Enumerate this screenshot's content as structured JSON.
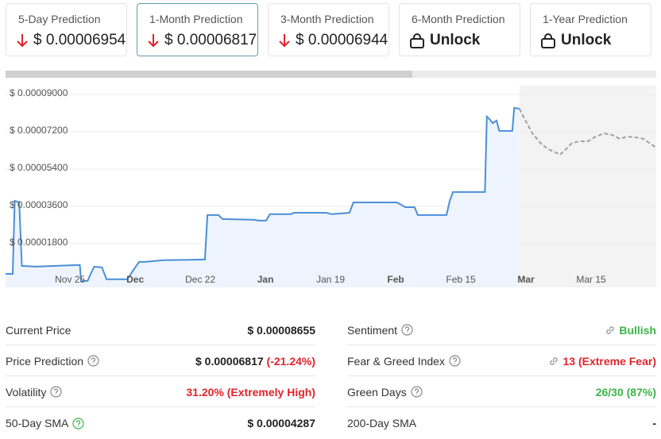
{
  "cards": [
    {
      "title": "5-Day Prediction",
      "value": "$ 0.00006954",
      "locked": false
    },
    {
      "title": "1-Month Prediction",
      "value": "$ 0.00006817",
      "locked": false,
      "selected": true
    },
    {
      "title": "3-Month Prediction",
      "value": "$ 0.00006944",
      "locked": false
    },
    {
      "title": "6-Month Prediction",
      "value": "Unlock",
      "locked": true
    },
    {
      "title": "1-Year Prediction",
      "value": "Unlock",
      "locked": true
    }
  ],
  "chart_data": {
    "type": "line",
    "xlim": [
      -0.99,
      9.0
    ],
    "xticks": [
      {
        "value": 0,
        "label": "Nov 25"
      },
      {
        "value": 1,
        "label": "Dec",
        "bold": true
      },
      {
        "value": 2,
        "label": "Dec 22"
      },
      {
        "value": 3,
        "label": "Jan",
        "bold": true
      },
      {
        "value": 4,
        "label": "Jan 19"
      },
      {
        "value": 5,
        "label": "Feb",
        "bold": true
      },
      {
        "value": 6,
        "label": "Feb 15"
      },
      {
        "value": 7,
        "label": "Mar",
        "bold": true
      },
      {
        "value": 8,
        "label": "Mar 15"
      }
    ],
    "ylim": [
      -3.1e-06,
      9.42e-05
    ],
    "yticks": [
      {
        "value": 1.8e-05,
        "label": "$ 0.00001800"
      },
      {
        "value": 3.6e-05,
        "label": "$ 0.00003600"
      },
      {
        "value": 5.4e-05,
        "label": "$ 0.00005400"
      },
      {
        "value": 7.2e-05,
        "label": "$ 0.00007200"
      },
      {
        "value": 9e-05,
        "label": "$ 0.00009000"
      }
    ],
    "grid": true,
    "series": [
      {
        "color": "#4a8fd6",
        "fill": "#eef4fd",
        "x": [
          -0.99,
          -0.88,
          -0.85,
          -0.78,
          -0.74,
          -0.52,
          -0.22,
          0.15,
          0.17,
          0.27,
          0.29,
          0.37,
          0.49,
          0.56,
          0.88,
          0.95,
          1.06,
          1.15,
          1.43,
          2.07,
          2.11,
          2.28,
          2.34,
          2.83,
          2.89,
          3.01,
          3.07,
          3.39,
          3.44,
          3.93,
          4.02,
          4.29,
          4.35,
          5.02,
          5.15,
          5.29,
          5.34,
          5.78,
          5.83,
          5.88,
          6.37,
          6.4,
          6.44,
          6.49,
          6.55,
          6.59,
          6.79,
          6.82,
          6.9
        ],
        "values": [
          3.4e-06,
          3.4e-06,
          3.87e-05,
          3.79e-05,
          7.3e-06,
          6.9e-06,
          7.3e-06,
          7.7e-06,
          0,
          0,
          1.5e-06,
          6.9e-06,
          6.5e-06,
          8e-07,
          8e-07,
          4.2e-06,
          9.2e-06,
          9.2e-06,
          1e-05,
          1.03e-05,
          3.18e-05,
          3.18e-05,
          2.99e-05,
          2.95e-05,
          2.91e-05,
          2.91e-05,
          3.22e-05,
          3.22e-05,
          3.29e-05,
          3.29e-05,
          3.22e-05,
          3.29e-05,
          3.79e-05,
          3.79e-05,
          3.56e-05,
          3.56e-05,
          3.18e-05,
          3.18e-05,
          3.87e-05,
          4.29e-05,
          4.29e-05,
          7.93e-05,
          7.81e-05,
          7.62e-05,
          7.74e-05,
          7.24e-05,
          7.24e-05,
          8.35e-05,
          8.31e-05
        ]
      },
      {
        "color": "#a0a0a0",
        "dashed": true,
        "shade": "#f3f3f3",
        "x": [
          6.9,
          6.98,
          7.1,
          7.22,
          7.34,
          7.46,
          7.52,
          7.59,
          7.71,
          7.83,
          7.95,
          8.07,
          8.2,
          8.32,
          8.44,
          8.56,
          8.68,
          8.8,
          9.0
        ],
        "values": [
          8.31e-05,
          7.81e-05,
          7.12e-05,
          6.66e-05,
          6.36e-05,
          6.2e-05,
          6.09e-05,
          6.28e-05,
          6.66e-05,
          6.74e-05,
          6.74e-05,
          6.97e-05,
          7.12e-05,
          7.05e-05,
          6.86e-05,
          6.97e-05,
          6.93e-05,
          6.86e-05,
          6.43e-05
        ]
      }
    ]
  },
  "stats": {
    "left": [
      {
        "label": "Current Price",
        "value": "$ 0.00008655"
      },
      {
        "label": "Price Prediction",
        "value": "$ 0.00006817",
        "change": " (-21.24%)",
        "help": true
      },
      {
        "label": "Volatility",
        "value": "31.20% (Extremely High)",
        "color": "#e0242b",
        "help": true
      },
      {
        "label": "50-Day SMA",
        "value": "$ 0.00004287",
        "help": true,
        "help_color": "#3cb54a"
      }
    ],
    "right": [
      {
        "label": "Sentiment",
        "value": "Bullish",
        "color": "#3cb54a",
        "help": true,
        "link": true
      },
      {
        "label": "Fear & Greed Index",
        "value": "13 (Extreme Fear)",
        "color": "#e0242b",
        "help": true,
        "link": true
      },
      {
        "label": "Green Days",
        "value": "26/30 (87%)",
        "color": "#3cb54a",
        "help": true
      },
      {
        "label": "200-Day SMA",
        "value": "-"
      }
    ]
  }
}
